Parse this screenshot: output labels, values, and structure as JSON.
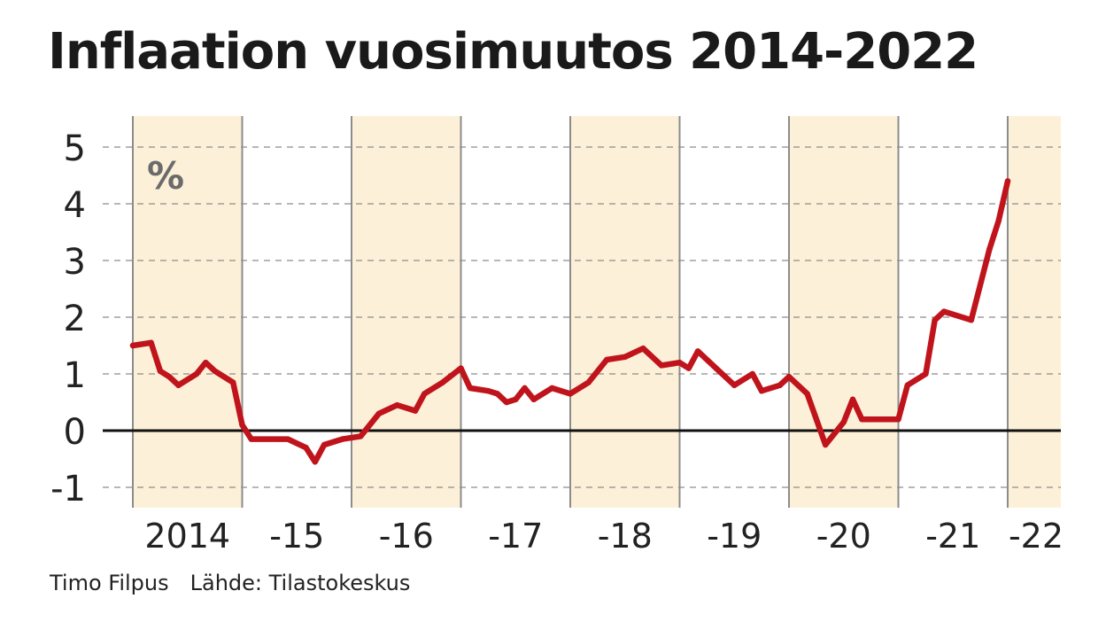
{
  "chart_data": {
    "type": "line",
    "title": "Inflaation vuosimuutos 2014-2022",
    "unit_label": "%",
    "ylim": [
      -1.5,
      5.5
    ],
    "y_ticks": [
      -1,
      0,
      1,
      2,
      3,
      4,
      5
    ],
    "y_tick_labels": [
      "-1",
      "0",
      "1",
      "2",
      "3",
      "4",
      "5"
    ],
    "x_range": [
      2014.0,
      2022.5
    ],
    "year_labels": [
      {
        "year": 2014,
        "label": "2014"
      },
      {
        "year": 2015,
        "label": "-15"
      },
      {
        "year": 2016,
        "label": "-16"
      },
      {
        "year": 2017,
        "label": "-17"
      },
      {
        "year": 2018,
        "label": "-18"
      },
      {
        "year": 2019,
        "label": "-19"
      },
      {
        "year": 2020,
        "label": "-20"
      },
      {
        "year": 2021,
        "label": "-21"
      },
      {
        "year": 2022,
        "label": "-22"
      }
    ],
    "grid": true,
    "series": [
      {
        "color": "#c0141c",
        "points": [
          {
            "x": "2014-01",
            "y": 1.5
          },
          {
            "x": "2014-03",
            "y": 1.55
          },
          {
            "x": "2014-04",
            "y": 1.05
          },
          {
            "x": "2014-05",
            "y": 0.95
          },
          {
            "x": "2014-06",
            "y": 0.8
          },
          {
            "x": "2014-08",
            "y": 1.0
          },
          {
            "x": "2014-09",
            "y": 1.2
          },
          {
            "x": "2014-10",
            "y": 1.05
          },
          {
            "x": "2014-12",
            "y": 0.85
          },
          {
            "x": "2015-01",
            "y": 0.1
          },
          {
            "x": "2015-02",
            "y": -0.15
          },
          {
            "x": "2015-05",
            "y": -0.15
          },
          {
            "x": "2015-06",
            "y": -0.15
          },
          {
            "x": "2015-08",
            "y": -0.3
          },
          {
            "x": "2015-09",
            "y": -0.55
          },
          {
            "x": "2015-10",
            "y": -0.25
          },
          {
            "x": "2015-12",
            "y": -0.15
          },
          {
            "x": "2016-02",
            "y": -0.1
          },
          {
            "x": "2016-04",
            "y": 0.3
          },
          {
            "x": "2016-06",
            "y": 0.45
          },
          {
            "x": "2016-08",
            "y": 0.35
          },
          {
            "x": "2016-09",
            "y": 0.65
          },
          {
            "x": "2016-11",
            "y": 0.85
          },
          {
            "x": "2017-01",
            "y": 1.1
          },
          {
            "x": "2017-02",
            "y": 0.75
          },
          {
            "x": "2017-04",
            "y": 0.7
          },
          {
            "x": "2017-05",
            "y": 0.65
          },
          {
            "x": "2017-06",
            "y": 0.5
          },
          {
            "x": "2017-07",
            "y": 0.55
          },
          {
            "x": "2017-08",
            "y": 0.75
          },
          {
            "x": "2017-09",
            "y": 0.55
          },
          {
            "x": "2017-11",
            "y": 0.75
          },
          {
            "x": "2018-01",
            "y": 0.65
          },
          {
            "x": "2018-03",
            "y": 0.85
          },
          {
            "x": "2018-05",
            "y": 1.25
          },
          {
            "x": "2018-07",
            "y": 1.3
          },
          {
            "x": "2018-09",
            "y": 1.45
          },
          {
            "x": "2018-11",
            "y": 1.15
          },
          {
            "x": "2019-01",
            "y": 1.2
          },
          {
            "x": "2019-02",
            "y": 1.1
          },
          {
            "x": "2019-03",
            "y": 1.4
          },
          {
            "x": "2019-05",
            "y": 1.1
          },
          {
            "x": "2019-07",
            "y": 0.8
          },
          {
            "x": "2019-09",
            "y": 1.0
          },
          {
            "x": "2019-10",
            "y": 0.7
          },
          {
            "x": "2019-12",
            "y": 0.8
          },
          {
            "x": "2020-01",
            "y": 0.95
          },
          {
            "x": "2020-03",
            "y": 0.65
          },
          {
            "x": "2020-05",
            "y": -0.25
          },
          {
            "x": "2020-07",
            "y": 0.15
          },
          {
            "x": "2020-08",
            "y": 0.55
          },
          {
            "x": "2020-09",
            "y": 0.2
          },
          {
            "x": "2020-11",
            "y": 0.2
          },
          {
            "x": "2021-01",
            "y": 0.2
          },
          {
            "x": "2021-02",
            "y": 0.8
          },
          {
            "x": "2021-04",
            "y": 1.0
          },
          {
            "x": "2021-05",
            "y": 1.95
          },
          {
            "x": "2021-06",
            "y": 2.1
          },
          {
            "x": "2021-09",
            "y": 1.95
          },
          {
            "x": "2021-11",
            "y": 3.2
          },
          {
            "x": "2021-12",
            "y": 3.7
          },
          {
            "x": "2022-01",
            "y": 4.4
          }
        ]
      }
    ]
  },
  "credits": {
    "author": "Timo Filpus",
    "source": "Lähde: Tilastokeskus"
  },
  "colors": {
    "band": "#fdf0d8",
    "grid": "#8c8c8c",
    "zero_line": "#111111",
    "unit_label": "#6b6b6b",
    "text": "#222222"
  }
}
